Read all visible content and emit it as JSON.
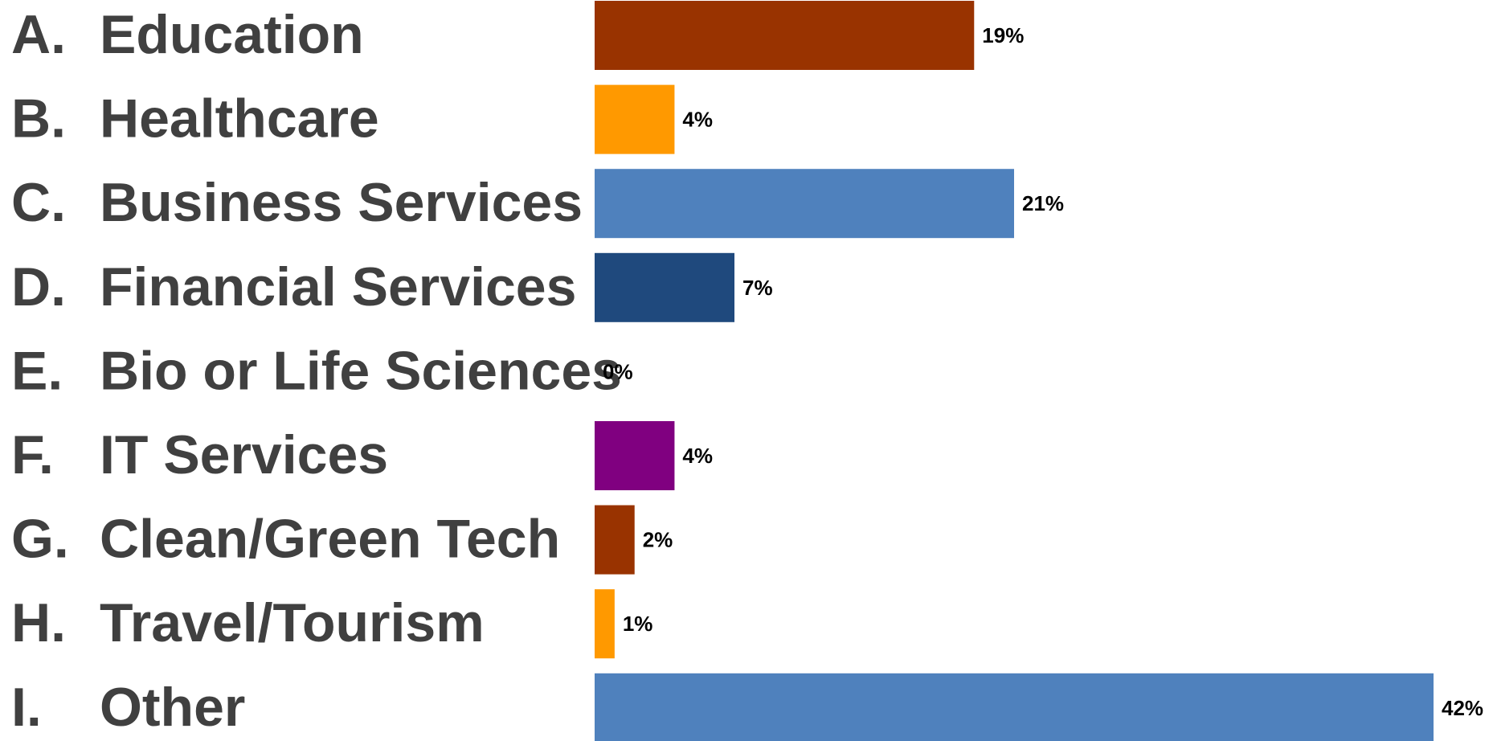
{
  "chart_data": {
    "type": "bar",
    "orientation": "horizontal",
    "letters": [
      "A.",
      "B.",
      "C.",
      "D.",
      "E.",
      "F.",
      "G.",
      "H.",
      "I."
    ],
    "categories": [
      "Education",
      "Healthcare",
      "Business Services",
      "Financial Services",
      "Bio or Life Sciences",
      "IT Services",
      "Clean/Green Tech",
      "Travel/Tourism",
      "Other"
    ],
    "values": [
      19,
      4,
      21,
      7,
      0,
      4,
      2,
      1,
      42
    ],
    "value_labels": [
      "19%",
      "4%",
      "21%",
      "7%",
      "0%",
      "4%",
      "2%",
      "1%",
      "42%"
    ],
    "colors": [
      "#993300",
      "#FF9900",
      "#4F81BD",
      "#1F497D",
      "#7F7F7F",
      "#800080",
      "#993300",
      "#FF9900",
      "#4F81BD"
    ],
    "unit": "%",
    "xlim": [
      0,
      42
    ],
    "grid": false,
    "title": "",
    "xlabel": "",
    "ylabel": ""
  }
}
